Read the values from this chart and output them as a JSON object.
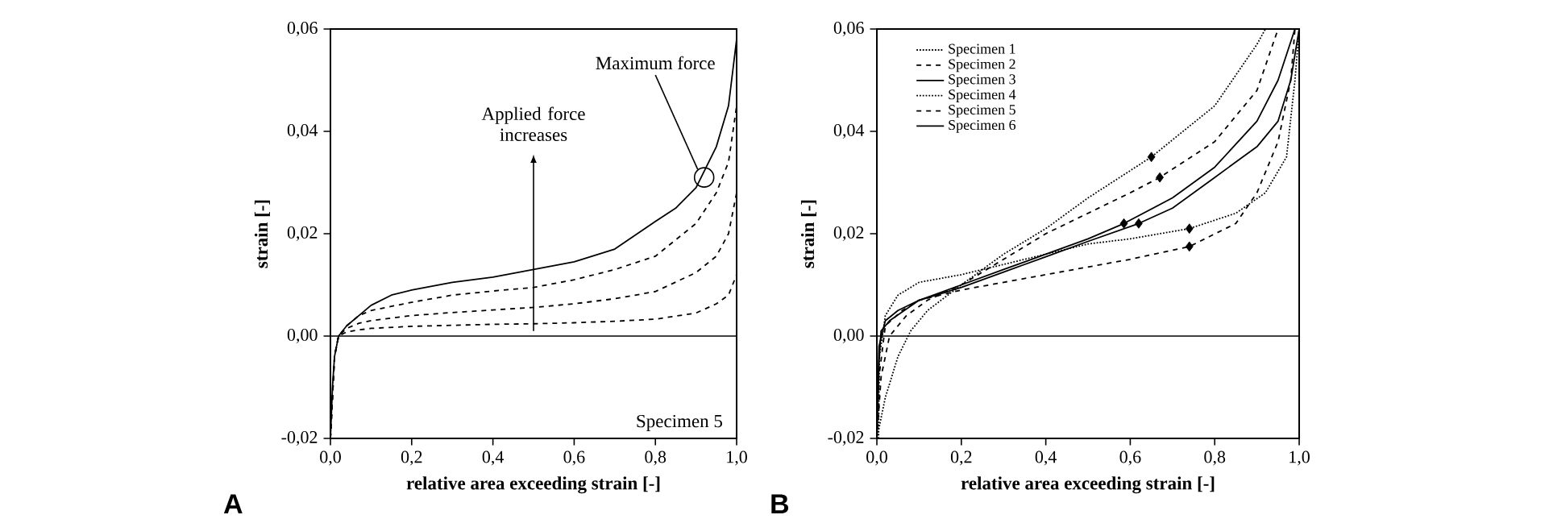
{
  "chart_data": [
    {
      "type": "line",
      "xlabel": "relative area exceeding strain [-]",
      "ylabel": "strain [-]",
      "xlim": [
        0,
        1
      ],
      "ylim": [
        -0.02,
        0.06
      ],
      "xticks": [
        {
          "value": 0,
          "label": "0,0"
        },
        {
          "value": 0.2,
          "label": "0,2"
        },
        {
          "value": 0.4,
          "label": "0,4"
        },
        {
          "value": 0.6,
          "label": "0,6"
        },
        {
          "value": 0.8,
          "label": "0,8"
        },
        {
          "value": 1,
          "label": "1,0"
        }
      ],
      "yticks": [
        {
          "value": -0.02,
          "label": "-0,02"
        },
        {
          "value": 0,
          "label": "0,00"
        },
        {
          "value": 0.02,
          "label": "0,02"
        },
        {
          "value": 0.04,
          "label": "0,04"
        },
        {
          "value": 0.06,
          "label": "0,06"
        }
      ],
      "grid": false,
      "legend": false,
      "ref_lines": [
        {
          "axis": "y",
          "value": 0,
          "color": "#000000"
        }
      ],
      "annotations": [
        {
          "text": "Maximum force",
          "x": 0.92,
          "y": 0.031
        },
        "Applied force increases",
        "Specimen 5",
        "A"
      ],
      "series": [
        {
          "color": "#000000",
          "line_style": "solid",
          "x": [
            0,
            0.005,
            0.01,
            0.02,
            0.04,
            0.07,
            0.1,
            0.15,
            0.2,
            0.3,
            0.4,
            0.5,
            0.6,
            0.7,
            0.8,
            0.85,
            0.9,
            0.95,
            0.98,
            1.0
          ],
          "values": [
            -0.02,
            -0.01,
            -0.004,
            0,
            0.002,
            0.004,
            0.006,
            0.008,
            0.009,
            0.0105,
            0.0115,
            0.013,
            0.0145,
            0.017,
            0.0224,
            0.025,
            0.029,
            0.037,
            0.045,
            0.058
          ]
        },
        {
          "color": "#000000",
          "line_style": "dashed",
          "x": [
            0,
            0.01,
            0.02,
            0.04,
            0.07,
            0.1,
            0.2,
            0.3,
            0.4,
            0.5,
            0.6,
            0.7,
            0.8,
            0.9,
            0.95,
            0.98,
            1.0
          ],
          "values": [
            -0.02,
            -0.004,
            0,
            0.002,
            0.004,
            0.005,
            0.0066,
            0.008,
            0.0088,
            0.0095,
            0.011,
            0.013,
            0.0156,
            0.022,
            0.028,
            0.034,
            0.045
          ]
        },
        {
          "color": "#000000",
          "line_style": "dashed",
          "x": [
            0,
            0.01,
            0.02,
            0.04,
            0.07,
            0.1,
            0.2,
            0.3,
            0.4,
            0.5,
            0.6,
            0.7,
            0.8,
            0.9,
            0.95,
            0.98,
            1.0
          ],
          "values": [
            -0.02,
            -0.004,
            0,
            0.0015,
            0.0025,
            0.003,
            0.004,
            0.0046,
            0.0051,
            0.0056,
            0.0063,
            0.0073,
            0.0087,
            0.0124,
            0.0156,
            0.02,
            0.028
          ]
        },
        {
          "color": "#000000",
          "line_style": "dashed",
          "x": [
            0,
            0.01,
            0.02,
            0.04,
            0.07,
            0.1,
            0.2,
            0.3,
            0.4,
            0.5,
            0.6,
            0.7,
            0.8,
            0.9,
            0.95,
            0.98,
            1.0
          ],
          "values": [
            -0.02,
            -0.004,
            0,
            0.0008,
            0.0012,
            0.0015,
            0.0019,
            0.0021,
            0.0023,
            0.0024,
            0.0026,
            0.0029,
            0.0033,
            0.0045,
            0.0063,
            0.008,
            0.012
          ]
        }
      ]
    },
    {
      "type": "line",
      "xlabel": "relative area exceeding strain [-]",
      "ylabel": "strain [-]",
      "xlim": [
        0,
        1
      ],
      "ylim": [
        -0.02,
        0.06
      ],
      "xticks": [
        {
          "value": 0,
          "label": "0,0"
        },
        {
          "value": 0.2,
          "label": "0,2"
        },
        {
          "value": 0.4,
          "label": "0,4"
        },
        {
          "value": 0.6,
          "label": "0,6"
        },
        {
          "value": 0.8,
          "label": "0,8"
        },
        {
          "value": 1,
          "label": "1,0"
        }
      ],
      "yticks": [
        {
          "value": -0.02,
          "label": "-0,02"
        },
        {
          "value": 0,
          "label": "0,00"
        },
        {
          "value": 0.02,
          "label": "0,02"
        },
        {
          "value": 0.04,
          "label": "0,04"
        },
        {
          "value": 0.06,
          "label": "0,06"
        }
      ],
      "grid": false,
      "legend": "top left",
      "ref_lines": [
        {
          "axis": "y",
          "value": 0,
          "color": "#000000"
        }
      ],
      "annotations": [
        "B"
      ],
      "series": [
        {
          "name": "Specimen 1",
          "color": "#000000",
          "line_style": "dotted",
          "x": [
            0,
            0.02,
            0.05,
            0.08,
            0.12,
            0.2,
            0.3,
            0.4,
            0.5,
            0.65,
            0.8,
            0.9,
            0.92
          ],
          "values": [
            -0.02,
            -0.012,
            -0.004,
            0.001,
            0.005,
            0.01,
            0.016,
            0.021,
            0.027,
            0.035,
            0.045,
            0.057,
            0.06
          ]
        },
        {
          "name": "Specimen 2",
          "color": "#000000",
          "line_style": "dashed",
          "x": [
            0,
            0.01,
            0.03,
            0.07,
            0.12,
            0.2,
            0.3,
            0.4,
            0.5,
            0.6,
            0.67,
            0.8,
            0.9,
            0.95
          ],
          "values": [
            -0.02,
            -0.008,
            0,
            0.004,
            0.007,
            0.01,
            0.015,
            0.02,
            0.024,
            0.028,
            0.031,
            0.038,
            0.048,
            0.06
          ]
        },
        {
          "name": "Specimen 3",
          "color": "#000000",
          "line_style": "solid",
          "x": [
            0,
            0.005,
            0.01,
            0.03,
            0.1,
            0.2,
            0.3,
            0.4,
            0.5,
            0.585,
            0.7,
            0.8,
            0.9,
            0.95,
            0.99
          ],
          "values": [
            -0.02,
            -0.005,
            0.001,
            0.003,
            0.007,
            0.01,
            0.013,
            0.016,
            0.019,
            0.022,
            0.027,
            0.033,
            0.042,
            0.05,
            0.06
          ]
        },
        {
          "name": "Specimen 4",
          "color": "#000000",
          "line_style": "dotted",
          "x": [
            0.004,
            0.006,
            0.02,
            0.05,
            0.1,
            0.2,
            0.3,
            0.4,
            0.5,
            0.6,
            0.74,
            0.85,
            0.92,
            0.97,
            0.99,
            1.0
          ],
          "values": [
            -0.02,
            -0.004,
            0.004,
            0.008,
            0.0105,
            0.012,
            0.014,
            0.016,
            0.018,
            0.019,
            0.021,
            0.024,
            0.028,
            0.035,
            0.05,
            0.06
          ]
        },
        {
          "name": "Specimen 5",
          "color": "#000000",
          "line_style": "dashed",
          "x": [
            0,
            0.005,
            0.02,
            0.06,
            0.1,
            0.2,
            0.3,
            0.4,
            0.5,
            0.6,
            0.74,
            0.85,
            0.9,
            0.95,
            0.98,
            0.99
          ],
          "values": [
            -0.02,
            -0.008,
            0.002,
            0.005,
            0.007,
            0.009,
            0.0105,
            0.012,
            0.0135,
            0.015,
            0.0175,
            0.022,
            0.028,
            0.038,
            0.05,
            0.06
          ]
        },
        {
          "name": "Specimen 6",
          "color": "#000000",
          "line_style": "solid",
          "x": [
            0,
            0.005,
            0.02,
            0.05,
            0.1,
            0.2,
            0.3,
            0.4,
            0.5,
            0.62,
            0.7,
            0.8,
            0.9,
            0.95,
            0.98,
            1.0
          ],
          "values": [
            -0.02,
            -0.002,
            0.003,
            0.005,
            0.007,
            0.0095,
            0.0125,
            0.0155,
            0.0185,
            0.022,
            0.025,
            0.031,
            0.037,
            0.042,
            0.05,
            0.06
          ]
        },
        {
          "type": "scatter",
          "marker": "diamond",
          "color": "#000000",
          "x": [
            0.65,
            0.67,
            0.585,
            0.74,
            0.74,
            0.62
          ],
          "values": [
            0.035,
            0.031,
            0.022,
            0.021,
            0.0175,
            0.022
          ]
        }
      ]
    }
  ]
}
